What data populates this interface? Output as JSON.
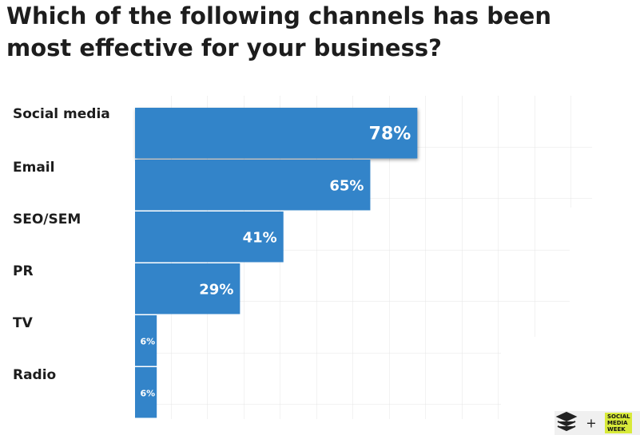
{
  "chart_data": {
    "type": "hbar",
    "title": "Which of the following channels has been most effective for your business?",
    "categories": [
      "Social media",
      "Email",
      "SEO/SEM",
      "PR",
      "TV",
      "Radio"
    ],
    "values": [
      78,
      65,
      41,
      29,
      6,
      6
    ],
    "value_labels": [
      "78%",
      "65%",
      "41%",
      "29%",
      "6%",
      "6%"
    ],
    "color": "#3384c9",
    "xlim": [
      0,
      100
    ]
  },
  "footer": {
    "separator": "+",
    "partner": [
      "SOCIAL",
      "MEDIA",
      "WEEK"
    ]
  }
}
